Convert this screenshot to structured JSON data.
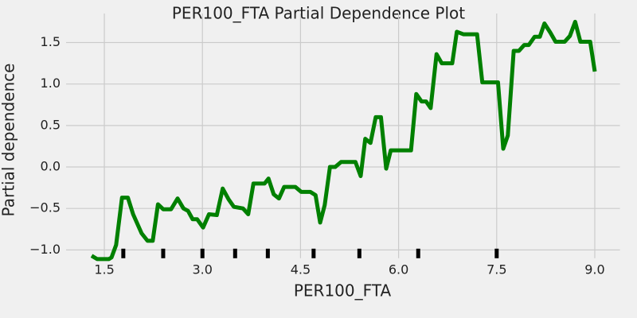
{
  "chart_data": {
    "type": "line",
    "title": "PER100_FTA Partial Dependence Plot",
    "x_label": "PER100_FTA",
    "y_label": "Partial dependence",
    "color": "#008000",
    "x": [
      1.305,
      1.39,
      1.57,
      1.61,
      1.68,
      1.77,
      1.86,
      1.94,
      2.07,
      2.16,
      2.24,
      2.32,
      2.4,
      2.52,
      2.62,
      2.71,
      2.78,
      2.85,
      2.92,
      3.01,
      3.1,
      3.22,
      3.31,
      3.4,
      3.48,
      3.62,
      3.7,
      3.78,
      3.95,
      4.01,
      4.09,
      4.17,
      4.25,
      4.42,
      4.51,
      4.65,
      4.73,
      4.8,
      4.87,
      4.95,
      5.03,
      5.12,
      5.34,
      5.42,
      5.49,
      5.57,
      5.65,
      5.73,
      5.81,
      5.88,
      6.19,
      6.27,
      6.35,
      6.42,
      6.49,
      6.58,
      6.66,
      6.82,
      6.89,
      6.99,
      7.2,
      7.28,
      7.52,
      7.6,
      7.67,
      7.76,
      7.84,
      7.92,
      7.99,
      8.08,
      8.16,
      8.23,
      8.32,
      8.4,
      8.54,
      8.62,
      8.7,
      8.78,
      8.93,
      9.0
    ],
    "values": [
      -1.07,
      -1.11,
      -1.11,
      -1.09,
      -0.94,
      -0.37,
      -0.37,
      -0.57,
      -0.8,
      -0.89,
      -0.89,
      -0.45,
      -0.51,
      -0.51,
      -0.38,
      -0.5,
      -0.53,
      -0.63,
      -0.63,
      -0.73,
      -0.57,
      -0.58,
      -0.26,
      -0.39,
      -0.48,
      -0.5,
      -0.57,
      -0.2,
      -0.2,
      -0.14,
      -0.33,
      -0.38,
      -0.24,
      -0.24,
      -0.3,
      -0.3,
      -0.34,
      -0.67,
      -0.46,
      0.0,
      0.0,
      0.06,
      0.06,
      -0.11,
      0.34,
      0.29,
      0.6,
      0.6,
      -0.02,
      0.2,
      0.2,
      0.88,
      0.79,
      0.79,
      0.71,
      1.36,
      1.25,
      1.25,
      1.63,
      1.6,
      1.6,
      1.02,
      1.02,
      0.22,
      0.38,
      1.4,
      1.4,
      1.47,
      1.47,
      1.57,
      1.57,
      1.73,
      1.62,
      1.51,
      1.51,
      1.58,
      1.75,
      1.51,
      1.51,
      1.15
    ],
    "deciles": [
      1.79,
      2.4,
      3.0,
      3.5,
      4.0,
      4.7,
      5.4,
      6.3,
      7.5
    ],
    "xlim": [
      0.915,
      9.385
    ],
    "ylim": [
      -1.1,
      1.85
    ],
    "xticks": [
      1.5,
      {
        "value": 3,
        "label": "3.0"
      },
      4.5,
      {
        "value": 6,
        "label": "6.0"
      },
      7.5,
      {
        "value": 9,
        "label": "9.0"
      }
    ],
    "yticks": [
      {
        "value": -1,
        "label": "−1.0"
      },
      {
        "value": -0.5,
        "label": "−0.5"
      },
      {
        "value": 0,
        "label": "0.0"
      },
      {
        "value": 0.5,
        "label": "0.5"
      },
      {
        "value": 1,
        "label": "1.0"
      },
      {
        "value": 1.5,
        "label": "1.5"
      }
    ],
    "grid": true
  }
}
